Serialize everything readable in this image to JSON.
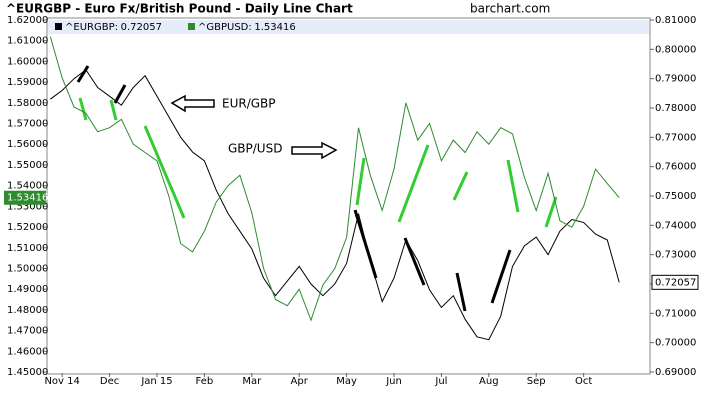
{
  "chart_data": {
    "type": "line",
    "title": "^EURGBP - Euro Fx/British Pound - Daily Line Chart",
    "source": "barchart.com",
    "annotations": [
      "EUR/GBP",
      "GBP/USD"
    ],
    "x": [
      -0.25,
      0,
      0.25,
      0.5,
      0.75,
      1,
      1.25,
      1.5,
      1.75,
      2,
      2.25,
      2.5,
      2.75,
      3,
      3.25,
      3.5,
      3.75,
      4,
      4.25,
      4.5,
      4.75,
      5,
      5.25,
      5.5,
      5.75,
      6,
      6.25,
      6.5,
      6.75,
      7,
      7.25,
      7.5,
      7.75,
      8,
      8.25,
      8.5,
      8.75,
      9,
      9.25,
      9.5,
      9.75,
      10,
      10.25,
      10.5,
      10.75,
      11,
      11.25,
      11.5,
      11.75
    ],
    "series": [
      {
        "name": "^EURGBP",
        "color": "#000000",
        "axis": "y2",
        "values": [
          0.783,
          0.786,
          0.79,
          0.793,
          0.787,
          0.784,
          0.781,
          0.787,
          0.791,
          0.784,
          0.777,
          0.77,
          0.765,
          0.762,
          0.752,
          0.744,
          0.738,
          0.732,
          0.722,
          0.716,
          0.721,
          0.726,
          0.72,
          0.716,
          0.72,
          0.727,
          0.744,
          0.728,
          0.714,
          0.722,
          0.735,
          0.728,
          0.718,
          0.712,
          0.716,
          0.708,
          0.702,
          0.701,
          0.709,
          0.726,
          0.733,
          0.736,
          0.73,
          0.738,
          0.742,
          0.741,
          0.737,
          0.735,
          0.72057
        ]
      },
      {
        "name": "^GBPUSD",
        "color": "#2e8b2e",
        "axis": "y",
        "values": [
          1.612,
          1.592,
          1.578,
          1.575,
          1.566,
          1.568,
          1.572,
          1.56,
          1.556,
          1.552,
          1.535,
          1.512,
          1.508,
          1.518,
          1.532,
          1.54,
          1.545,
          1.527,
          1.5,
          1.485,
          1.482,
          1.49,
          1.475,
          1.492,
          1.5,
          1.515,
          1.568,
          1.545,
          1.528,
          1.548,
          1.58,
          1.562,
          1.57,
          1.552,
          1.562,
          1.556,
          1.566,
          1.56,
          1.568,
          1.565,
          1.544,
          1.528,
          1.546,
          1.523,
          1.52,
          1.53,
          1.548,
          1.541,
          1.53416
        ]
      }
    ],
    "xlim": [
      -0.32,
      12.4
    ],
    "xticks": [
      {
        "value": 0,
        "label": "Nov 14"
      },
      {
        "value": 1,
        "label": "Dec"
      },
      {
        "value": 2,
        "label": "Jan 15"
      },
      {
        "value": 3,
        "label": "Feb"
      },
      {
        "value": 4,
        "label": "Mar"
      },
      {
        "value": 5,
        "label": "Apr"
      },
      {
        "value": 6,
        "label": "May"
      },
      {
        "value": 7,
        "label": "Jun"
      },
      {
        "value": 8,
        "label": "Jul"
      },
      {
        "value": 9,
        "label": "Aug"
      },
      {
        "value": 10,
        "label": "Sep"
      },
      {
        "value": 11,
        "label": "Oct"
      }
    ],
    "ylim": [
      1.45,
      1.62
    ],
    "yticks": [
      {
        "value": 1.45,
        "label": "1.45000"
      },
      {
        "value": 1.46,
        "label": "1.46000"
      },
      {
        "value": 1.47,
        "label": "1.47000"
      },
      {
        "value": 1.48,
        "label": "1.48000"
      },
      {
        "value": 1.49,
        "label": "1.49000"
      },
      {
        "value": 1.5,
        "label": "1.50000"
      },
      {
        "value": 1.51,
        "label": "1.51000"
      },
      {
        "value": 1.52,
        "label": "1.52000"
      },
      {
        "value": 1.53,
        "label": "1.53000"
      },
      {
        "value": 1.54,
        "label": "1.54000"
      },
      {
        "value": 1.55,
        "label": "1.55000"
      },
      {
        "value": 1.56,
        "label": "1.56000"
      },
      {
        "value": 1.57,
        "label": "1.57000"
      },
      {
        "value": 1.58,
        "label": "1.58000"
      },
      {
        "value": 1.59,
        "label": "1.59000"
      },
      {
        "value": 1.6,
        "label": "1.60000"
      },
      {
        "value": 1.61,
        "label": "1.61000"
      },
      {
        "value": 1.62,
        "label": "1.62000"
      }
    ],
    "y2lim": [
      0.69,
      0.81
    ],
    "y2ticks": [
      {
        "value": 0.69,
        "label": "0.69000"
      },
      {
        "value": 0.7,
        "label": "0.70000"
      },
      {
        "value": 0.71,
        "label": "0.71000"
      },
      {
        "value": 0.72,
        "label": "0.72000"
      },
      {
        "value": 0.73,
        "label": "0.73000"
      },
      {
        "value": 0.74,
        "label": "0.74000"
      },
      {
        "value": 0.75,
        "label": "0.75000"
      },
      {
        "value": 0.76,
        "label": "0.76000"
      },
      {
        "value": 0.77,
        "label": "0.77000"
      },
      {
        "value": 0.78,
        "label": "0.78000"
      },
      {
        "value": 0.79,
        "label": "0.79000"
      },
      {
        "value": 0.8,
        "label": "0.80000"
      },
      {
        "value": 0.81,
        "label": "0.81000"
      }
    ],
    "grid": false
  }
}
